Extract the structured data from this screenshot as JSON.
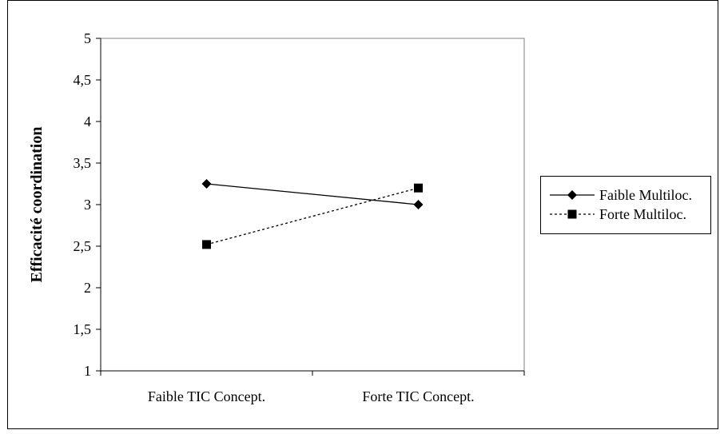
{
  "chart_data": {
    "type": "line",
    "categories": [
      "Faible TIC Concept.",
      "Forte TIC Concept."
    ],
    "series": [
      {
        "name": "Faible Multiloc.",
        "marker": "diamond",
        "line_style": "solid",
        "values": [
          3.25,
          3.0
        ]
      },
      {
        "name": "Forte Multiloc.",
        "marker": "square",
        "line_style": "dashed",
        "values": [
          2.52,
          3.2
        ]
      }
    ],
    "title": "",
    "xlabel": "",
    "ylabel": "Efficacité  coordination",
    "ylim": [
      1,
      5
    ],
    "yticks": [
      1,
      1.5,
      2,
      2.5,
      3,
      3.5,
      4,
      4.5,
      5
    ],
    "ytick_labels": [
      "1",
      "1,5",
      "2",
      "2,5",
      "3",
      "3,5",
      "4",
      "4,5",
      "5"
    ],
    "grid": false,
    "legend_position": "right",
    "colors": {
      "line": "#000000",
      "background": "#ffffff"
    }
  }
}
